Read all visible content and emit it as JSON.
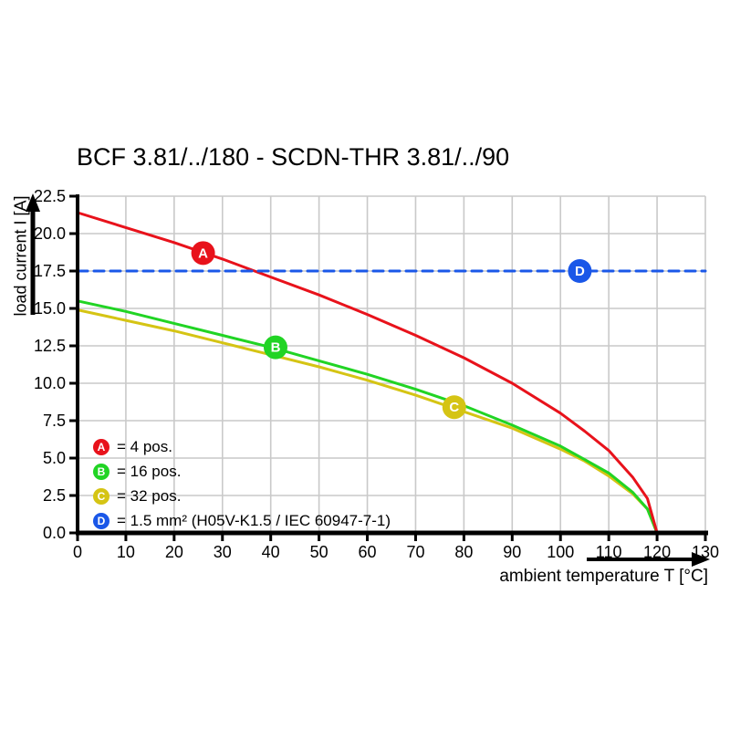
{
  "title": "BCF 3.81/../180 - SCDN-THR 3.81/../90",
  "chart_data": {
    "type": "line",
    "title": "BCF 3.81/../180 - SCDN-THR 3.81/../90",
    "xlabel": "ambient temperature T [°C]",
    "ylabel": "load current I [A]",
    "xlim": [
      0,
      130
    ],
    "ylim": [
      0,
      22.5
    ],
    "grid": true,
    "legend_position": "inside-bottom-left",
    "x_ticks": {
      "values": [
        0,
        10,
        20,
        30,
        40,
        50,
        60,
        70,
        80,
        90,
        100,
        110,
        120,
        130
      ],
      "labels": [
        "0",
        "10",
        "20",
        "30",
        "40",
        "50",
        "60",
        "70",
        "80",
        "90",
        "100",
        "110",
        "120",
        "130"
      ]
    },
    "y_ticks": {
      "values": [
        0,
        2.5,
        5,
        7.5,
        10,
        12.5,
        15,
        17.5,
        20,
        22.5
      ],
      "labels": [
        "0.0",
        "2.5",
        "5.0",
        "7.5",
        "10.0",
        "12.5",
        "15.0",
        "17.5",
        "20.0",
        "22.5"
      ]
    },
    "series": [
      {
        "id": "C",
        "name": "32 pos.",
        "color": "#d5c414",
        "line_style": "solid",
        "marker": {
          "letter": "C",
          "x": 78,
          "y": 8.4
        },
        "points": [
          [
            0,
            14.9
          ],
          [
            10,
            14.2
          ],
          [
            20,
            13.5
          ],
          [
            30,
            12.7
          ],
          [
            40,
            11.9
          ],
          [
            50,
            11.1
          ],
          [
            60,
            10.2
          ],
          [
            70,
            9.2
          ],
          [
            80,
            8.1
          ],
          [
            90,
            7.0
          ],
          [
            100,
            5.6
          ],
          [
            105,
            4.8
          ],
          [
            110,
            3.8
          ],
          [
            115,
            2.6
          ],
          [
            118,
            1.6
          ],
          [
            120,
            0
          ]
        ]
      },
      {
        "id": "B",
        "name": "16 pos.",
        "color": "#21d424",
        "line_style": "solid",
        "marker": {
          "letter": "B",
          "x": 41,
          "y": 12.4
        },
        "points": [
          [
            0,
            15.5
          ],
          [
            10,
            14.8
          ],
          [
            20,
            14.0
          ],
          [
            30,
            13.2
          ],
          [
            40,
            12.4
          ],
          [
            50,
            11.5
          ],
          [
            60,
            10.6
          ],
          [
            70,
            9.6
          ],
          [
            80,
            8.5
          ],
          [
            90,
            7.2
          ],
          [
            100,
            5.8
          ],
          [
            105,
            4.9
          ],
          [
            110,
            4.0
          ],
          [
            115,
            2.7
          ],
          [
            118,
            1.6
          ],
          [
            120,
            0
          ]
        ]
      },
      {
        "id": "A",
        "name": "4 pos.",
        "color": "#e8121b",
        "line_style": "solid",
        "marker": {
          "letter": "A",
          "x": 26,
          "y": 18.7
        },
        "points": [
          [
            0,
            21.4
          ],
          [
            10,
            20.4
          ],
          [
            20,
            19.4
          ],
          [
            30,
            18.3
          ],
          [
            40,
            17.1
          ],
          [
            50,
            15.9
          ],
          [
            60,
            14.6
          ],
          [
            70,
            13.2
          ],
          [
            80,
            11.7
          ],
          [
            90,
            10.0
          ],
          [
            100,
            8.0
          ],
          [
            105,
            6.8
          ],
          [
            110,
            5.5
          ],
          [
            115,
            3.7
          ],
          [
            118,
            2.3
          ],
          [
            120,
            0
          ]
        ]
      },
      {
        "id": "D",
        "name": "1.5 mm² (H05V-K1.5 / IEC 60947-7-1)",
        "color": "#1a57e8",
        "line_style": "dashed",
        "marker": {
          "letter": "D",
          "x": 104,
          "y": 17.5
        },
        "points": [
          [
            0,
            17.5
          ],
          [
            130,
            17.5
          ]
        ]
      }
    ]
  },
  "legend": {
    "items": [
      {
        "letter": "A",
        "label": "= 4 pos.",
        "color": "#e8121b"
      },
      {
        "letter": "B",
        "label": "= 16 pos.",
        "color": "#21d424"
      },
      {
        "letter": "C",
        "label": "= 32 pos.",
        "color": "#d5c414"
      },
      {
        "letter": "D",
        "label": "= 1.5 mm² (H05V-K1.5 / IEC 60947-7-1)",
        "color": "#1a57e8"
      }
    ]
  },
  "colors": {
    "grid": "#c9c9c9",
    "axis": "#000000",
    "background": "#ffffff",
    "text": "#000000"
  }
}
